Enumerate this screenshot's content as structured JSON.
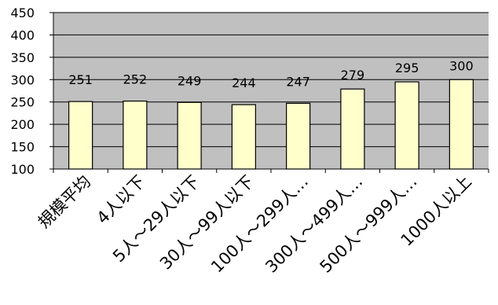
{
  "chart_data": {
    "type": "bar",
    "title": "",
    "xlabel": "",
    "ylabel": "",
    "categories": [
      "規模平均",
      "4人以下",
      "5人～29人以下",
      "30人～99人以下",
      "100人～299人…",
      "300人～499人…",
      "500人～999人…",
      "1000人以上"
    ],
    "values": [
      251,
      252,
      249,
      244,
      247,
      279,
      295,
      300
    ],
    "ylim": [
      100,
      450
    ],
    "yticks": [
      100,
      150,
      200,
      250,
      300,
      350,
      400,
      450
    ],
    "grid": true,
    "legend": "none",
    "colors": {
      "plot_background": "#c0c0c0",
      "bar_fill": "#ffffcc",
      "bar_stroke": "#000000",
      "gridline": "#000000"
    }
  }
}
